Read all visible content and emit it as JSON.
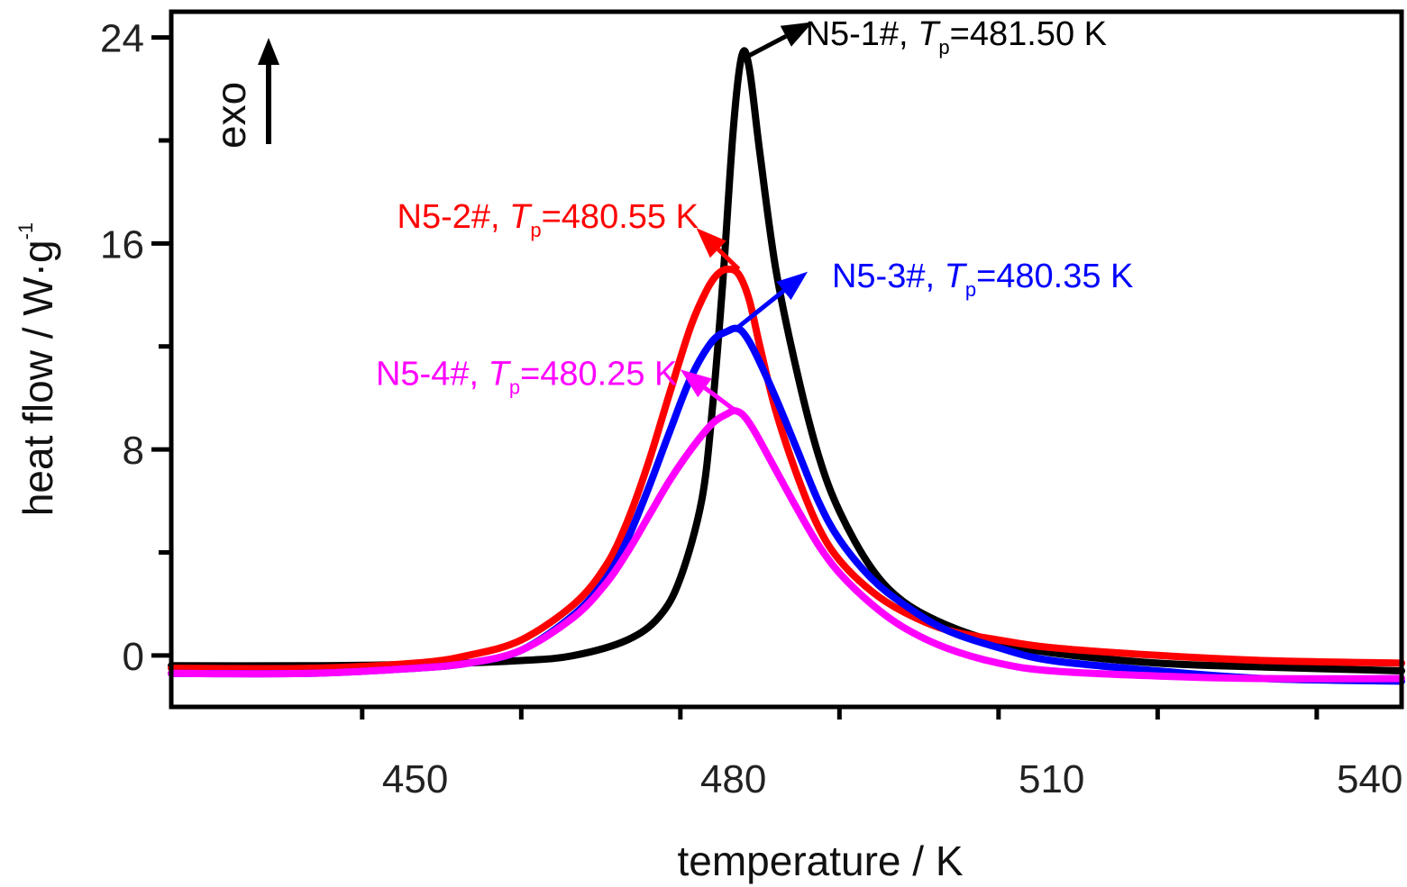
{
  "chart_data": {
    "type": "line",
    "title": "",
    "xlabel": "temperature / K",
    "ylabel": "heat flow / W·g",
    "ylabel_sup": "-1",
    "xlim": [
      427,
      543
    ],
    "ylim": [
      -2,
      25
    ],
    "x_ticks": [
      450,
      480,
      510,
      540
    ],
    "y_ticks": [
      0,
      8,
      16,
      24
    ],
    "grid": false,
    "exo_label": "exo",
    "series": [
      {
        "color": "#000000",
        "x": [
          427,
          440,
          450,
          460,
          465,
          470,
          473,
          475,
          477,
          478,
          479,
          480,
          480.8,
          481.5,
          482.5,
          484,
          486,
          488,
          490,
          493,
          496,
          500,
          505,
          510,
          520,
          530,
          543
        ],
        "y": [
          -0.4,
          -0.4,
          -0.35,
          -0.2,
          0.0,
          0.6,
          1.5,
          3.0,
          6.0,
          9.5,
          14.5,
          20.5,
          23.3,
          22.8,
          19.5,
          15.0,
          11.0,
          7.8,
          5.6,
          3.4,
          2.1,
          1.2,
          0.5,
          0.1,
          -0.3,
          -0.45,
          -0.6
        ]
      },
      {
        "color": "#ff0000",
        "x": [
          427,
          440,
          450,
          455,
          460,
          465,
          468,
          470,
          472,
          474,
          476,
          477.5,
          478.5,
          479.5,
          480.5,
          481.5,
          482.5,
          484,
          486,
          488,
          490,
          493,
          496,
          500,
          505,
          510,
          520,
          530,
          543
        ],
        "y": [
          -0.5,
          -0.5,
          -0.3,
          0.0,
          0.6,
          2.0,
          3.5,
          5.2,
          7.5,
          10.2,
          12.8,
          14.2,
          14.8,
          15.0,
          14.8,
          13.8,
          12.0,
          9.5,
          7.0,
          5.0,
          3.7,
          2.5,
          1.7,
          1.0,
          0.6,
          0.3,
          0.0,
          -0.2,
          -0.3
        ]
      },
      {
        "color": "#0000ff",
        "x": [
          427,
          440,
          450,
          455,
          460,
          465,
          468,
          470,
          472,
          474,
          476,
          478,
          479.5,
          480.3,
          481,
          482,
          484,
          486,
          488,
          490,
          493,
          496,
          500,
          505,
          510,
          520,
          530,
          543
        ],
        "y": [
          -0.7,
          -0.7,
          -0.5,
          -0.3,
          0.2,
          1.6,
          3.0,
          4.5,
          6.5,
          8.7,
          10.8,
          12.2,
          12.6,
          12.7,
          12.5,
          11.8,
          10.0,
          8.0,
          6.0,
          4.5,
          3.0,
          2.0,
          1.0,
          0.3,
          -0.2,
          -0.6,
          -0.9,
          -1.0
        ]
      },
      {
        "color": "#ff00ff",
        "x": [
          427,
          440,
          450,
          455,
          460,
          465,
          468,
          470,
          472,
          474,
          476,
          478,
          479.5,
          480.2,
          481,
          482,
          484,
          486,
          488,
          490,
          493,
          496,
          500,
          505,
          510,
          520,
          530,
          543
        ],
        "y": [
          -0.7,
          -0.7,
          -0.5,
          -0.3,
          0.2,
          1.5,
          2.8,
          4.0,
          5.4,
          6.8,
          8.0,
          9.0,
          9.4,
          9.5,
          9.3,
          8.7,
          7.2,
          5.7,
          4.3,
          3.2,
          2.0,
          1.1,
          0.3,
          -0.3,
          -0.6,
          -0.8,
          -0.9,
          -0.9
        ]
      }
    ],
    "annotations": [
      {
        "sample": "N5-1#, ",
        "t": "T",
        "sub": "p",
        "value": "=481.50 K",
        "color": "#000000",
        "text_x": 501,
        "text_y": 23.7,
        "arrow_from": [
          481.5,
          23.3
        ],
        "arrow_to": [
          487.5,
          24.6
        ]
      },
      {
        "sample": "N5-2#, ",
        "t": "T",
        "sub": "p",
        "value": "=480.55 K",
        "color": "#ff0000",
        "text_x": 462.5,
        "text_y": 16.6,
        "arrow_from": [
          480.5,
          15.0
        ],
        "arrow_to": [
          476.5,
          16.6
        ]
      },
      {
        "sample": "N5-3#, ",
        "t": "T",
        "sub": "p",
        "value": "=480.35 K",
        "color": "#0000ff",
        "text_x": 503.5,
        "text_y": 14.3,
        "arrow_from": [
          480.3,
          12.7
        ],
        "arrow_to": [
          487,
          14.9
        ]
      },
      {
        "sample": "N5-4#, ",
        "t": "T",
        "sub": "p",
        "value": "=480.25 K",
        "color": "#ff00ff",
        "text_x": 460.5,
        "text_y": 10.5,
        "arrow_from": [
          480.2,
          9.5
        ],
        "arrow_to": [
          475,
          11.1
        ]
      }
    ]
  }
}
